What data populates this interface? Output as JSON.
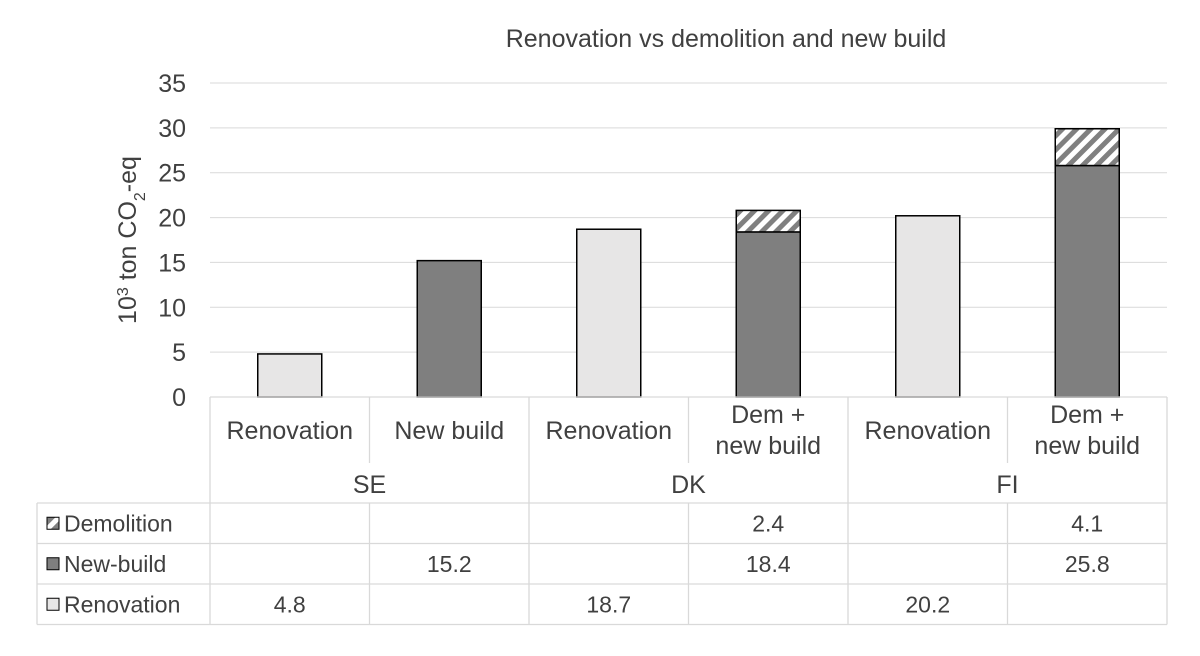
{
  "chart_data": {
    "type": "bar",
    "stacked": true,
    "title": "Renovation vs demolition and new build",
    "ylabel": {
      "base": "10",
      "sup": "3",
      "mid": " ton CO",
      "sub": "2",
      "tail": "-eq"
    },
    "ylim": [
      0,
      35
    ],
    "yticks": [
      "0",
      "5",
      "10",
      "15",
      "20",
      "25",
      "30",
      "35"
    ],
    "grid": true,
    "legend_placement": "data table rows",
    "groups": [
      "SE",
      "DK",
      "FI"
    ],
    "categories": [
      [
        "Renovation"
      ],
      [
        "New build"
      ],
      [
        "Renovation"
      ],
      [
        "Dem +",
        "new build"
      ],
      [
        "Renovation"
      ],
      [
        "Dem +",
        "new build"
      ]
    ],
    "series": [
      {
        "name": "Renovation",
        "color": "#e7e6e6",
        "pattern": "solid",
        "values": [
          4.8,
          null,
          18.7,
          null,
          20.2,
          null
        ],
        "labels": [
          "4.8",
          "",
          "18.7",
          "",
          "20.2",
          ""
        ]
      },
      {
        "name": "New-build",
        "color": "#7f7f7f",
        "pattern": "solid",
        "values": [
          null,
          15.2,
          null,
          18.4,
          null,
          25.8
        ],
        "labels": [
          "",
          "15.2",
          "",
          "18.4",
          "",
          "25.8"
        ]
      },
      {
        "name": "Demolition",
        "color": "#808080",
        "pattern": "diagonal-hatch",
        "values": [
          null,
          null,
          null,
          2.4,
          null,
          4.1
        ],
        "labels": [
          "",
          "",
          "",
          "2.4",
          "",
          "4.1"
        ]
      }
    ],
    "table_row_order": [
      "Demolition",
      "New-build",
      "Renovation"
    ]
  }
}
